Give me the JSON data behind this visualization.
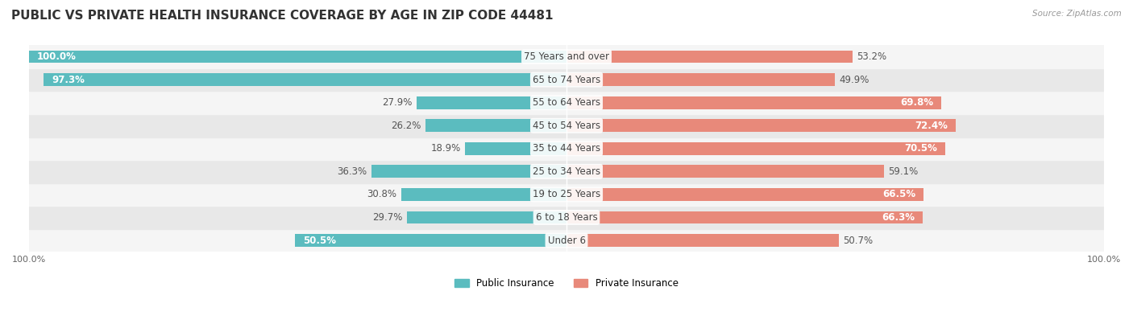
{
  "title": "PUBLIC VS PRIVATE HEALTH INSURANCE COVERAGE BY AGE IN ZIP CODE 44481",
  "source": "Source: ZipAtlas.com",
  "categories": [
    "Under 6",
    "6 to 18 Years",
    "19 to 25 Years",
    "25 to 34 Years",
    "35 to 44 Years",
    "45 to 54 Years",
    "55 to 64 Years",
    "65 to 74 Years",
    "75 Years and over"
  ],
  "public_values": [
    50.5,
    29.7,
    30.8,
    36.3,
    18.9,
    26.2,
    27.9,
    97.3,
    100.0
  ],
  "private_values": [
    50.7,
    66.3,
    66.5,
    59.1,
    70.5,
    72.4,
    69.8,
    49.9,
    53.2
  ],
  "public_color": "#5bbcbf",
  "private_color": "#e8897a",
  "public_label": "Public Insurance",
  "private_label": "Private Insurance",
  "row_bg_light": "#f5f5f5",
  "row_bg_dark": "#e8e8e8",
  "max_val": 100.0,
  "title_fontsize": 11,
  "label_fontsize": 8.5,
  "tick_fontsize": 8,
  "bar_height": 0.55,
  "figsize": [
    14.06,
    4.13
  ],
  "dpi": 100
}
